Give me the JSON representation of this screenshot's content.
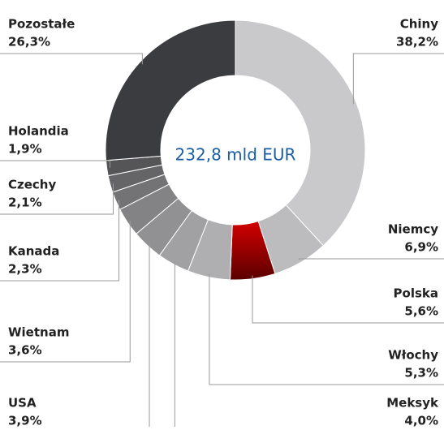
{
  "chart_data": {
    "type": "donut",
    "center_label": "232,8 mld EUR",
    "categories": [
      "Chiny",
      "Niemcy",
      "Polska",
      "Włochy",
      "Meksyk",
      "USA",
      "Wietnam",
      "Kanada",
      "Czechy",
      "Holandia",
      "Pozostałe"
    ],
    "values": [
      38.2,
      6.9,
      5.6,
      5.3,
      4.0,
      3.9,
      3.6,
      2.3,
      2.1,
      1.9,
      26.3
    ],
    "value_labels": [
      "38,2%",
      "6,9%",
      "5,6%",
      "5,3%",
      "4,0%",
      "3,9%",
      "3,6%",
      "2,3%",
      "2,1%",
      "1,9%",
      "26,3%"
    ],
    "colors": [
      "#c9c9cb",
      "#bcbcbe",
      "#c00000",
      "#afafb1",
      "#a1a1a3",
      "#919193",
      "#838385",
      "#737375",
      "#656567",
      "#555557",
      "#3b3c40"
    ]
  }
}
